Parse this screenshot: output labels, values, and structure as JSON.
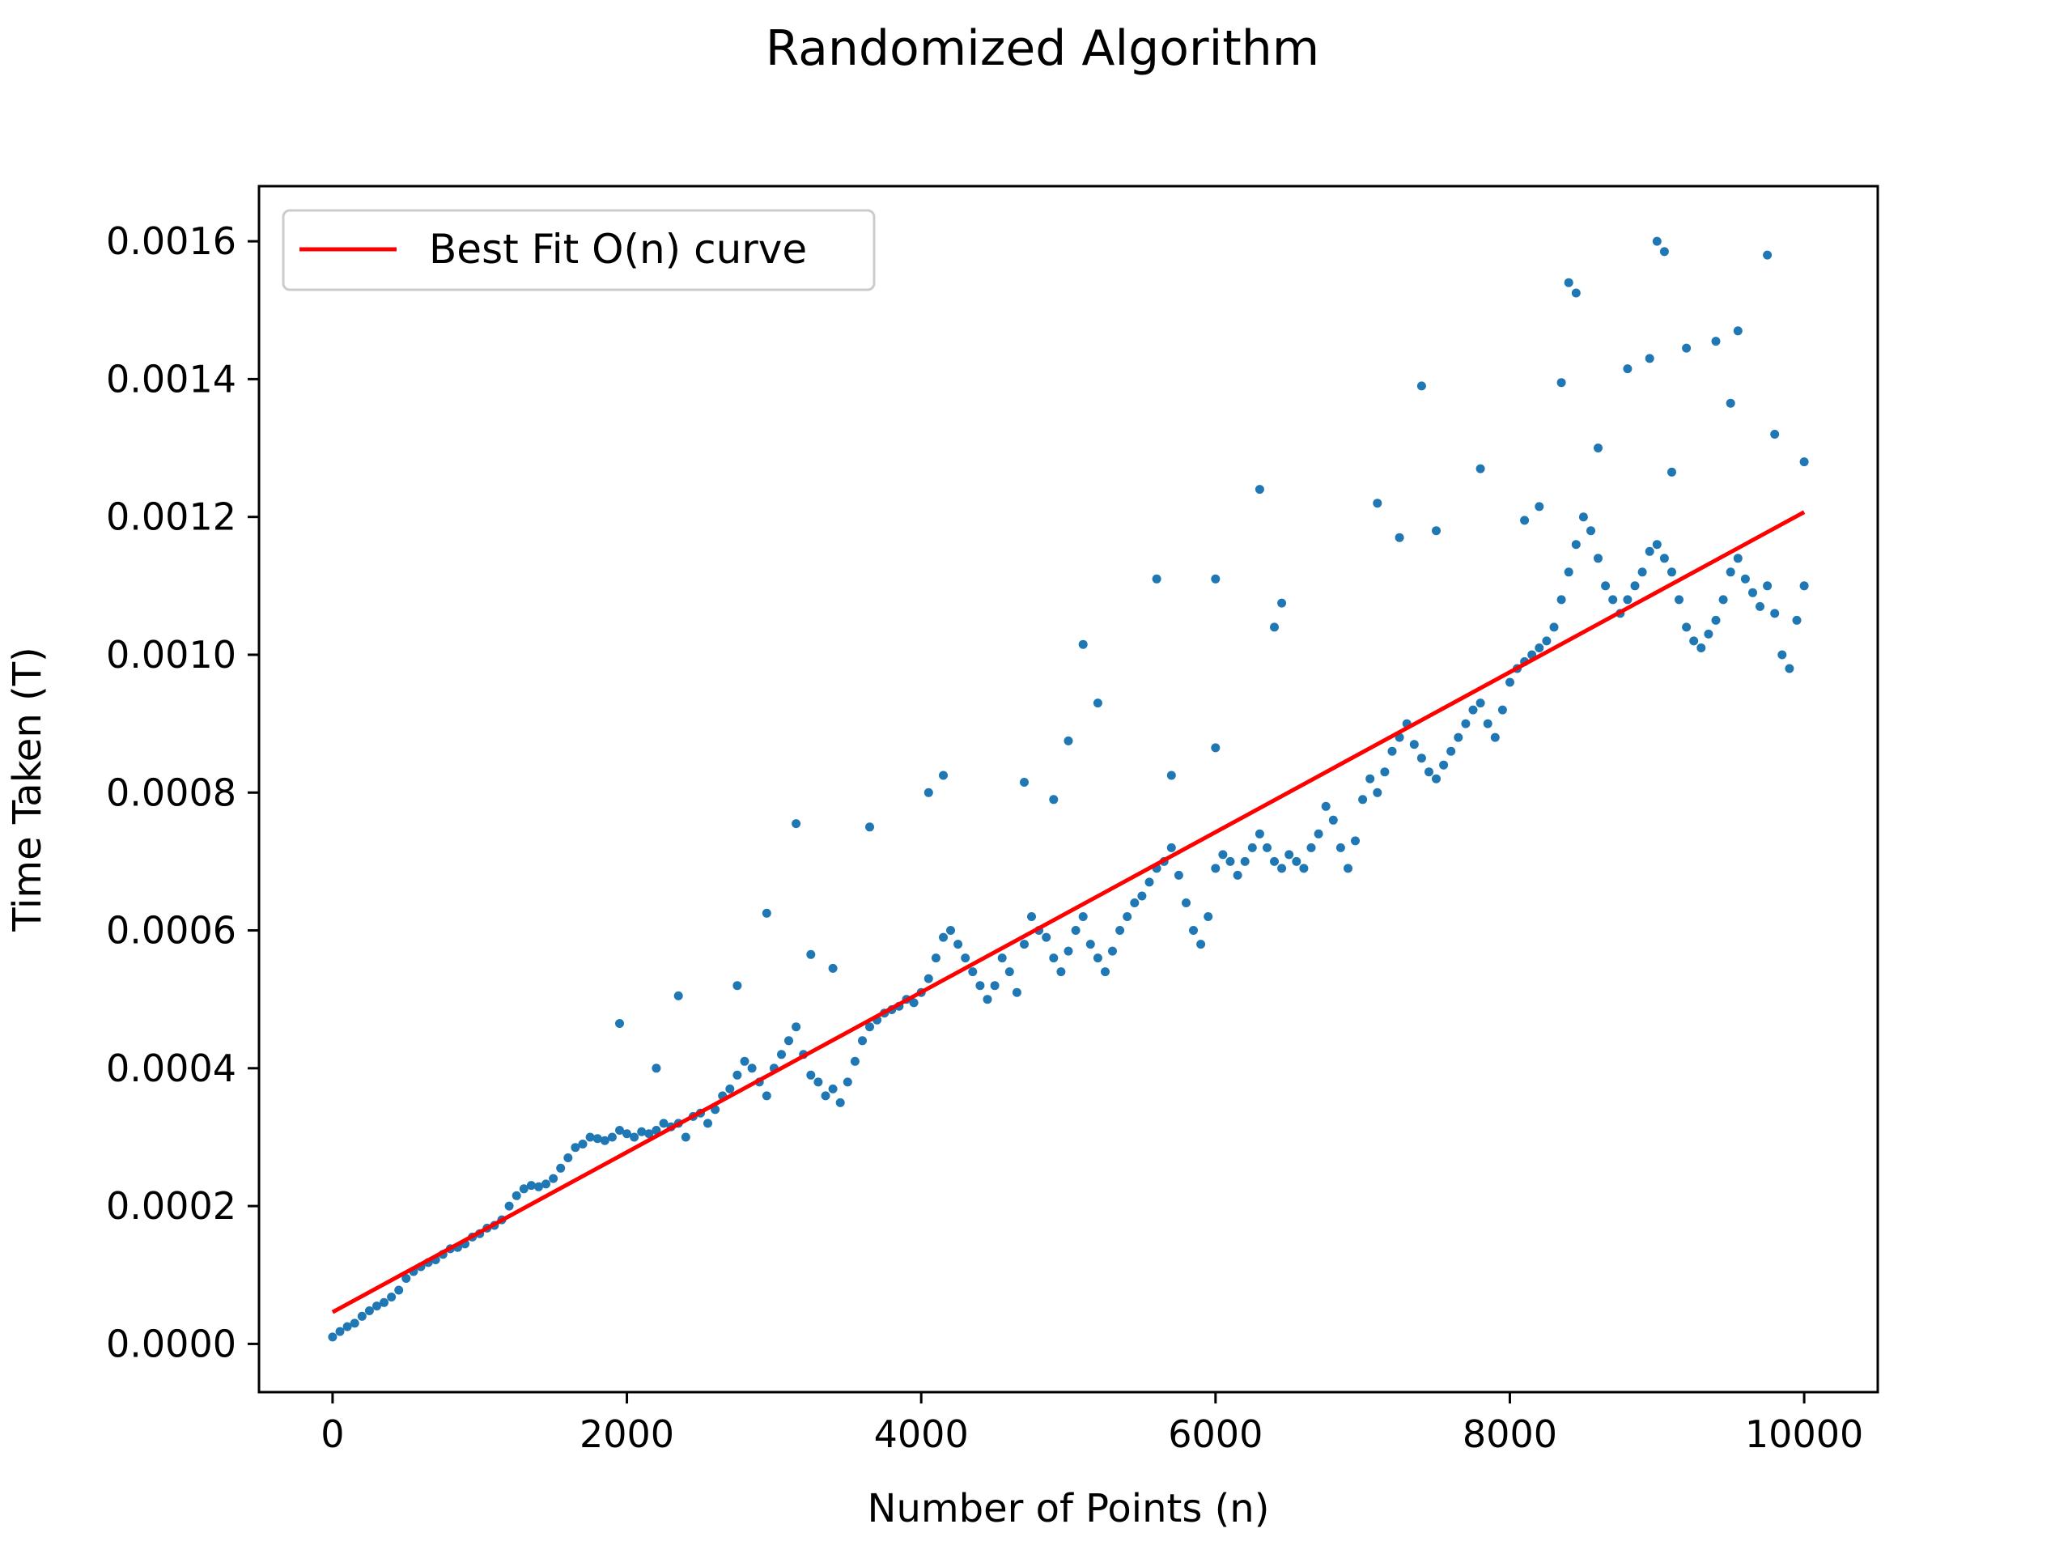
{
  "chart_data": {
    "type": "scatter",
    "title": "Randomized Algorithm",
    "xlabel": "Number of Points (n)",
    "ylabel": "Time Taken (T)",
    "xlim": [
      -500,
      10500
    ],
    "ylim": [
      -7e-05,
      0.00168
    ],
    "x_ticks": [
      0,
      2000,
      4000,
      6000,
      8000,
      10000
    ],
    "x_tick_labels": [
      "0",
      "2000",
      "4000",
      "6000",
      "8000",
      "10000"
    ],
    "y_ticks": [
      0.0,
      0.0002,
      0.0004,
      0.0006,
      0.0008,
      0.001,
      0.0012,
      0.0014,
      0.0016
    ],
    "y_tick_labels": [
      "0.0000",
      "0.0002",
      "0.0004",
      "0.0006",
      "0.0008",
      "0.0010",
      "0.0012",
      "0.0014",
      "0.0016"
    ],
    "grid": false,
    "legend_position": "upper-left",
    "scatter_color": "#1f77b4",
    "series": [
      {
        "name": "",
        "kind": "scatter",
        "color": "#1f77b4",
        "points": [
          [
            0,
            1e-05
          ],
          [
            50,
            1.8e-05
          ],
          [
            100,
            2.5e-05
          ],
          [
            150,
            3e-05
          ],
          [
            200,
            4e-05
          ],
          [
            250,
            4.8e-05
          ],
          [
            300,
            5.5e-05
          ],
          [
            350,
            6e-05
          ],
          [
            400,
            6.8e-05
          ],
          [
            450,
            7.8e-05
          ],
          [
            500,
            9.5e-05
          ],
          [
            550,
            0.000105
          ],
          [
            600,
            0.000112
          ],
          [
            650,
            0.000118
          ],
          [
            700,
            0.000122
          ],
          [
            750,
            0.00013
          ],
          [
            800,
            0.000138
          ],
          [
            850,
            0.00014
          ],
          [
            900,
            0.000145
          ],
          [
            950,
            0.000155
          ],
          [
            1000,
            0.00016
          ],
          [
            1050,
            0.000168
          ],
          [
            1100,
            0.000172
          ],
          [
            1150,
            0.00018
          ],
          [
            1200,
            0.0002
          ],
          [
            1250,
            0.000215
          ],
          [
            1300,
            0.000225
          ],
          [
            1350,
            0.00023
          ],
          [
            1400,
            0.000228
          ],
          [
            1450,
            0.000232
          ],
          [
            1500,
            0.00024
          ],
          [
            1550,
            0.000255
          ],
          [
            1600,
            0.00027
          ],
          [
            1650,
            0.000285
          ],
          [
            1700,
            0.00029
          ],
          [
            1750,
            0.0003
          ],
          [
            1800,
            0.000298
          ],
          [
            1850,
            0.000295
          ],
          [
            1900,
            0.0003
          ],
          [
            1950,
            0.00031
          ],
          [
            2000,
            0.000305
          ],
          [
            2050,
            0.0003
          ],
          [
            2100,
            0.000308
          ],
          [
            2150,
            0.000305
          ],
          [
            2200,
            0.00031
          ],
          [
            2250,
            0.00032
          ],
          [
            2300,
            0.000315
          ],
          [
            2350,
            0.00032
          ],
          [
            2400,
            0.0003
          ],
          [
            2450,
            0.00033
          ],
          [
            2500,
            0.000335
          ],
          [
            2550,
            0.00032
          ],
          [
            2600,
            0.00034
          ],
          [
            2650,
            0.00036
          ],
          [
            2700,
            0.00037
          ],
          [
            2750,
            0.00039
          ],
          [
            2800,
            0.00041
          ],
          [
            2850,
            0.0004
          ],
          [
            2900,
            0.00038
          ],
          [
            2950,
            0.00036
          ],
          [
            3000,
            0.0004
          ],
          [
            3050,
            0.00042
          ],
          [
            3100,
            0.00044
          ],
          [
            3150,
            0.00046
          ],
          [
            3200,
            0.00042
          ],
          [
            3250,
            0.00039
          ],
          [
            3300,
            0.00038
          ],
          [
            3350,
            0.00036
          ],
          [
            3400,
            0.00037
          ],
          [
            3450,
            0.00035
          ],
          [
            3500,
            0.00038
          ],
          [
            3550,
            0.00041
          ],
          [
            3600,
            0.00044
          ],
          [
            3650,
            0.00046
          ],
          [
            3700,
            0.00047
          ],
          [
            3750,
            0.00048
          ],
          [
            3800,
            0.000485
          ],
          [
            3850,
            0.00049
          ],
          [
            3900,
            0.0005
          ],
          [
            3950,
            0.000495
          ],
          [
            4000,
            0.00051
          ],
          [
            4050,
            0.00053
          ],
          [
            4100,
            0.00056
          ],
          [
            4150,
            0.00059
          ],
          [
            4200,
            0.0006
          ],
          [
            4250,
            0.00058
          ],
          [
            4300,
            0.00056
          ],
          [
            4350,
            0.00054
          ],
          [
            4400,
            0.00052
          ],
          [
            4450,
            0.0005
          ],
          [
            4500,
            0.00052
          ],
          [
            4550,
            0.00056
          ],
          [
            4600,
            0.00054
          ],
          [
            4650,
            0.00051
          ],
          [
            4700,
            0.00058
          ],
          [
            4750,
            0.00062
          ],
          [
            4800,
            0.0006
          ],
          [
            4850,
            0.00059
          ],
          [
            4900,
            0.00056
          ],
          [
            4950,
            0.00054
          ],
          [
            5000,
            0.00057
          ],
          [
            5050,
            0.0006
          ],
          [
            5100,
            0.00062
          ],
          [
            5150,
            0.00058
          ],
          [
            5200,
            0.00056
          ],
          [
            5250,
            0.00054
          ],
          [
            5300,
            0.00057
          ],
          [
            5350,
            0.0006
          ],
          [
            5400,
            0.00062
          ],
          [
            5450,
            0.00064
          ],
          [
            5500,
            0.00065
          ],
          [
            5550,
            0.00067
          ],
          [
            5600,
            0.00069
          ],
          [
            5650,
            0.0007
          ],
          [
            5700,
            0.00072
          ],
          [
            5750,
            0.00068
          ],
          [
            5800,
            0.00064
          ],
          [
            5850,
            0.0006
          ],
          [
            5900,
            0.00058
          ],
          [
            5950,
            0.00062
          ],
          [
            6000,
            0.00069
          ],
          [
            6050,
            0.00071
          ],
          [
            6100,
            0.0007
          ],
          [
            6150,
            0.00068
          ],
          [
            6200,
            0.0007
          ],
          [
            6250,
            0.00072
          ],
          [
            6300,
            0.00074
          ],
          [
            6350,
            0.00072
          ],
          [
            6400,
            0.0007
          ],
          [
            6450,
            0.00069
          ],
          [
            6500,
            0.00071
          ],
          [
            6550,
            0.0007
          ],
          [
            6600,
            0.00069
          ],
          [
            6650,
            0.00072
          ],
          [
            6700,
            0.00074
          ],
          [
            6750,
            0.00078
          ],
          [
            6800,
            0.00076
          ],
          [
            6850,
            0.00072
          ],
          [
            6900,
            0.00069
          ],
          [
            6950,
            0.00073
          ],
          [
            7000,
            0.00079
          ],
          [
            7050,
            0.00082
          ],
          [
            7100,
            0.0008
          ],
          [
            7150,
            0.00083
          ],
          [
            7200,
            0.00086
          ],
          [
            7250,
            0.00088
          ],
          [
            7300,
            0.0009
          ],
          [
            7350,
            0.00087
          ],
          [
            7400,
            0.00085
          ],
          [
            7450,
            0.00083
          ],
          [
            7500,
            0.00082
          ],
          [
            7550,
            0.00084
          ],
          [
            7600,
            0.00086
          ],
          [
            7650,
            0.00088
          ],
          [
            7700,
            0.0009
          ],
          [
            7750,
            0.00092
          ],
          [
            7800,
            0.00093
          ],
          [
            7850,
            0.0009
          ],
          [
            7900,
            0.00088
          ],
          [
            7950,
            0.00092
          ],
          [
            8000,
            0.00096
          ],
          [
            8050,
            0.00098
          ],
          [
            8100,
            0.00099
          ],
          [
            8150,
            0.001
          ],
          [
            8200,
            0.00101
          ],
          [
            8250,
            0.00102
          ],
          [
            8300,
            0.00104
          ],
          [
            8350,
            0.00108
          ],
          [
            8400,
            0.00112
          ],
          [
            8450,
            0.00116
          ],
          [
            8500,
            0.0012
          ],
          [
            8550,
            0.00118
          ],
          [
            8600,
            0.00114
          ],
          [
            8650,
            0.0011
          ],
          [
            8700,
            0.00108
          ],
          [
            8750,
            0.00106
          ],
          [
            8800,
            0.00108
          ],
          [
            8850,
            0.0011
          ],
          [
            8900,
            0.00112
          ],
          [
            8950,
            0.00115
          ],
          [
            9000,
            0.00116
          ],
          [
            9050,
            0.00114
          ],
          [
            9100,
            0.00112
          ],
          [
            9150,
            0.00108
          ],
          [
            9200,
            0.00104
          ],
          [
            9250,
            0.00102
          ],
          [
            9300,
            0.00101
          ],
          [
            9350,
            0.00103
          ],
          [
            9400,
            0.00105
          ],
          [
            9450,
            0.00108
          ],
          [
            9500,
            0.00112
          ],
          [
            9550,
            0.00114
          ],
          [
            9600,
            0.00111
          ],
          [
            9650,
            0.00109
          ],
          [
            9700,
            0.00107
          ],
          [
            9750,
            0.0011
          ],
          [
            9800,
            0.00106
          ],
          [
            9850,
            0.001
          ],
          [
            9900,
            0.00098
          ],
          [
            9950,
            0.00105
          ],
          [
            10000,
            0.0011
          ],
          [
            3150,
            0.000755
          ],
          [
            2950,
            0.000625
          ],
          [
            3650,
            0.00075
          ],
          [
            4050,
            0.0008
          ],
          [
            4150,
            0.000825
          ],
          [
            4700,
            0.000815
          ],
          [
            4900,
            0.00079
          ],
          [
            5100,
            0.001015
          ],
          [
            5200,
            0.00093
          ],
          [
            5000,
            0.000875
          ],
          [
            5600,
            0.00111
          ],
          [
            5700,
            0.000825
          ],
          [
            6000,
            0.00111
          ],
          [
            6300,
            0.00124
          ],
          [
            6400,
            0.00104
          ],
          [
            6450,
            0.001075
          ],
          [
            6000,
            0.000865
          ],
          [
            7100,
            0.00122
          ],
          [
            7250,
            0.00117
          ],
          [
            7400,
            0.00139
          ],
          [
            7500,
            0.00118
          ],
          [
            7800,
            0.00127
          ],
          [
            8400,
            0.00154
          ],
          [
            8450,
            0.001525
          ],
          [
            8800,
            0.001415
          ],
          [
            8950,
            0.00143
          ],
          [
            9000,
            0.0016
          ],
          [
            9050,
            0.001585
          ],
          [
            9200,
            0.001445
          ],
          [
            9400,
            0.001455
          ],
          [
            9500,
            0.001365
          ],
          [
            9550,
            0.00147
          ],
          [
            9750,
            0.00158
          ],
          [
            9800,
            0.00132
          ],
          [
            10000,
            0.00128
          ],
          [
            8200,
            0.001215
          ],
          [
            8100,
            0.001195
          ],
          [
            8600,
            0.0013
          ],
          [
            8350,
            0.001395
          ],
          [
            9100,
            0.001265
          ],
          [
            1950,
            0.000465
          ],
          [
            2200,
            0.0004
          ],
          [
            2350,
            0.000505
          ],
          [
            2750,
            0.00052
          ],
          [
            3400,
            0.000545
          ],
          [
            3250,
            0.000565
          ]
        ]
      },
      {
        "name": "Best Fit O(n) curve",
        "kind": "line",
        "color": "#ff0000",
        "x": [
          0,
          10000
        ],
        "y": [
          4.6e-05,
          0.001207
        ]
      }
    ]
  }
}
